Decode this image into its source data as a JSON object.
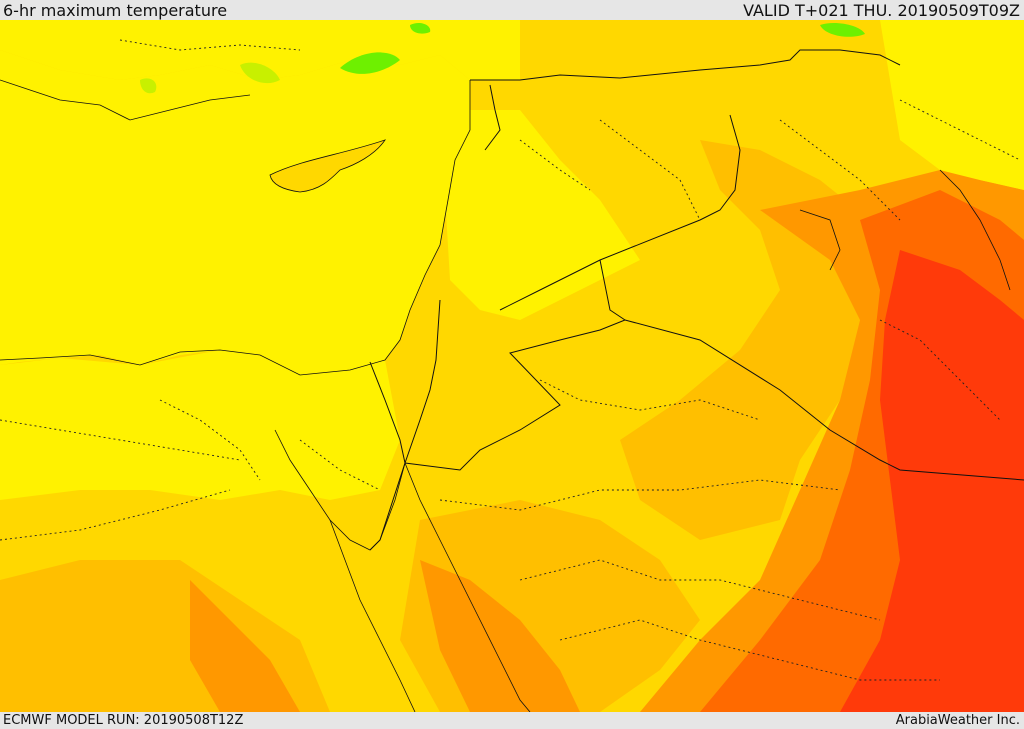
{
  "header": {
    "title": "6-hr maximum temperature",
    "valid": "VALID T+021 THU. 20190509T09Z"
  },
  "footer": {
    "model_run": "ECMWF MODEL RUN: 20190508T12Z",
    "credit": "ArabiaWeather Inc."
  },
  "map": {
    "palette": {
      "green": "#6ef000",
      "light_green": "#c8f000",
      "yellow": "#fff200",
      "gold": "#ffd800",
      "orange_light": "#ffbf00",
      "orange": "#ff9800",
      "orange_dark": "#ff6a00",
      "red": "#ff3a0a"
    },
    "border_style": "black outlines, dotted internal boundaries"
  }
}
